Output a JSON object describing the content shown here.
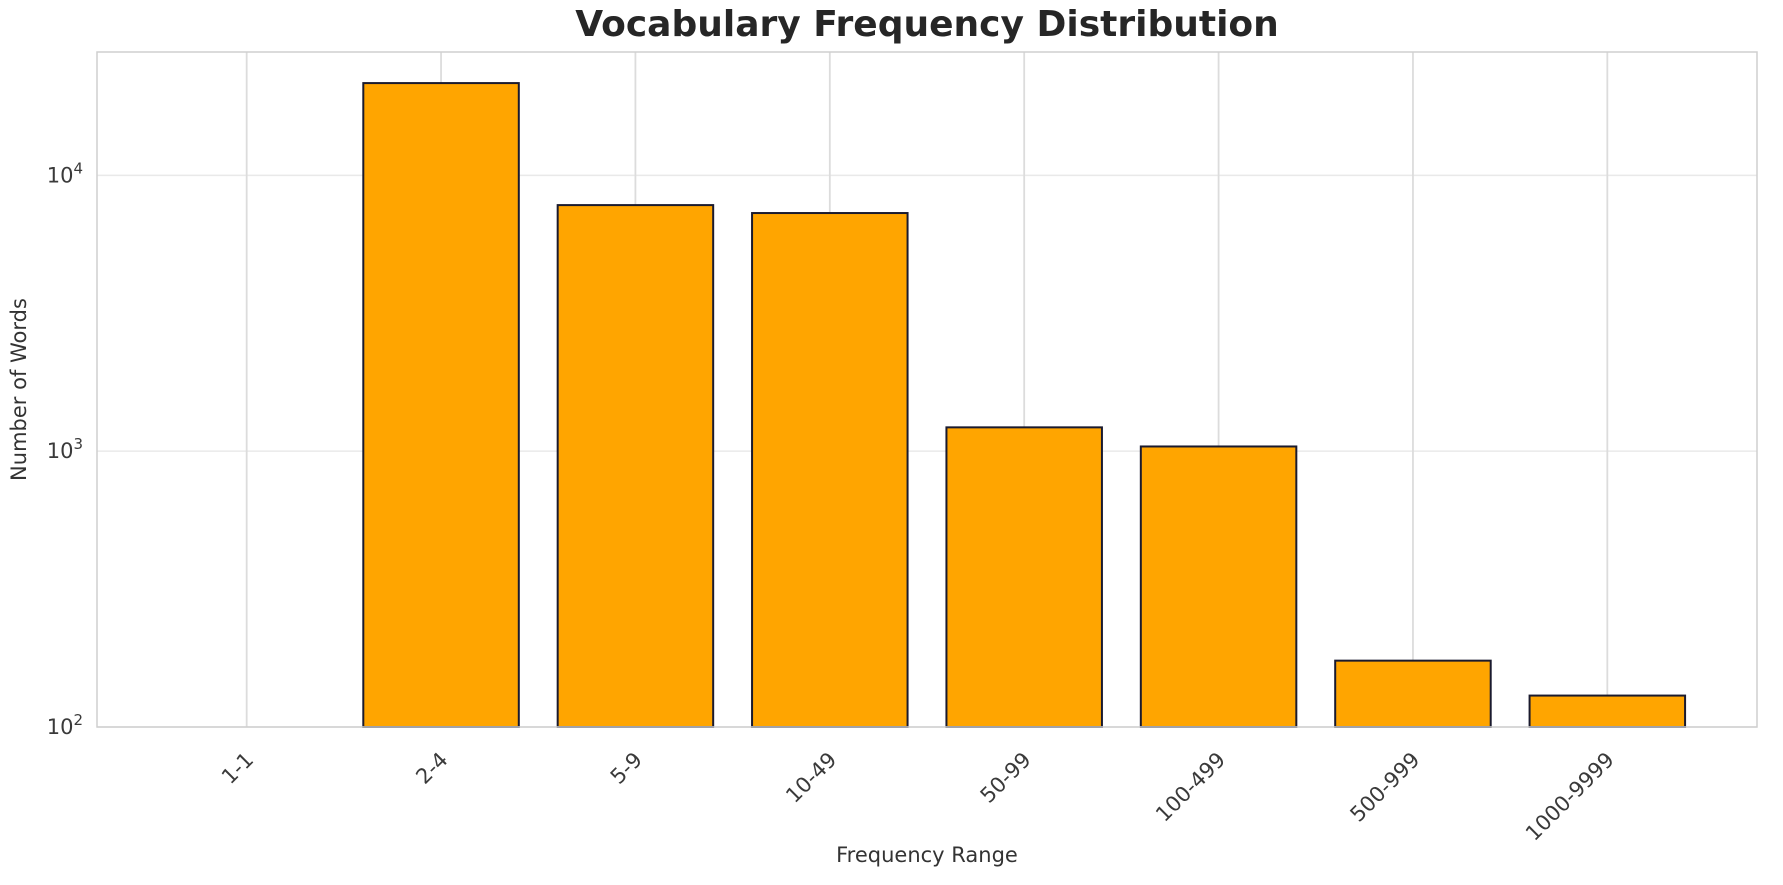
{
  "title": "Vocabulary Frequency Distribution",
  "chart_data": {
    "type": "bar",
    "title": "Vocabulary Frequency Distribution",
    "xlabel": "Frequency Range",
    "ylabel": "Number of Words",
    "categories": [
      "1-1",
      "2-4",
      "5-9",
      "10-49",
      "50-99",
      "100-499",
      "500-999",
      "1000-9999"
    ],
    "values": [
      0,
      21600,
      7800,
      7300,
      1220,
      1040,
      174,
      130
    ],
    "yscale": "log",
    "ylim": [
      100,
      28000
    ],
    "yticks": [
      100,
      1000,
      10000
    ],
    "ytick_labels": [
      "10^2",
      "10^3",
      "10^4"
    ],
    "grid": true,
    "legend": "none",
    "colors": {
      "bar_fill": "#FFA500",
      "bar_edge": "#1a1a2e",
      "grid_vertical": "#dcdcdc",
      "grid_horizontal": "#e9e9e9",
      "frame": "#cfcfcf",
      "title_text": "#262626",
      "label_text": "#333333",
      "tick_text": "#3a3a3a",
      "background": "#ffffff"
    }
  }
}
